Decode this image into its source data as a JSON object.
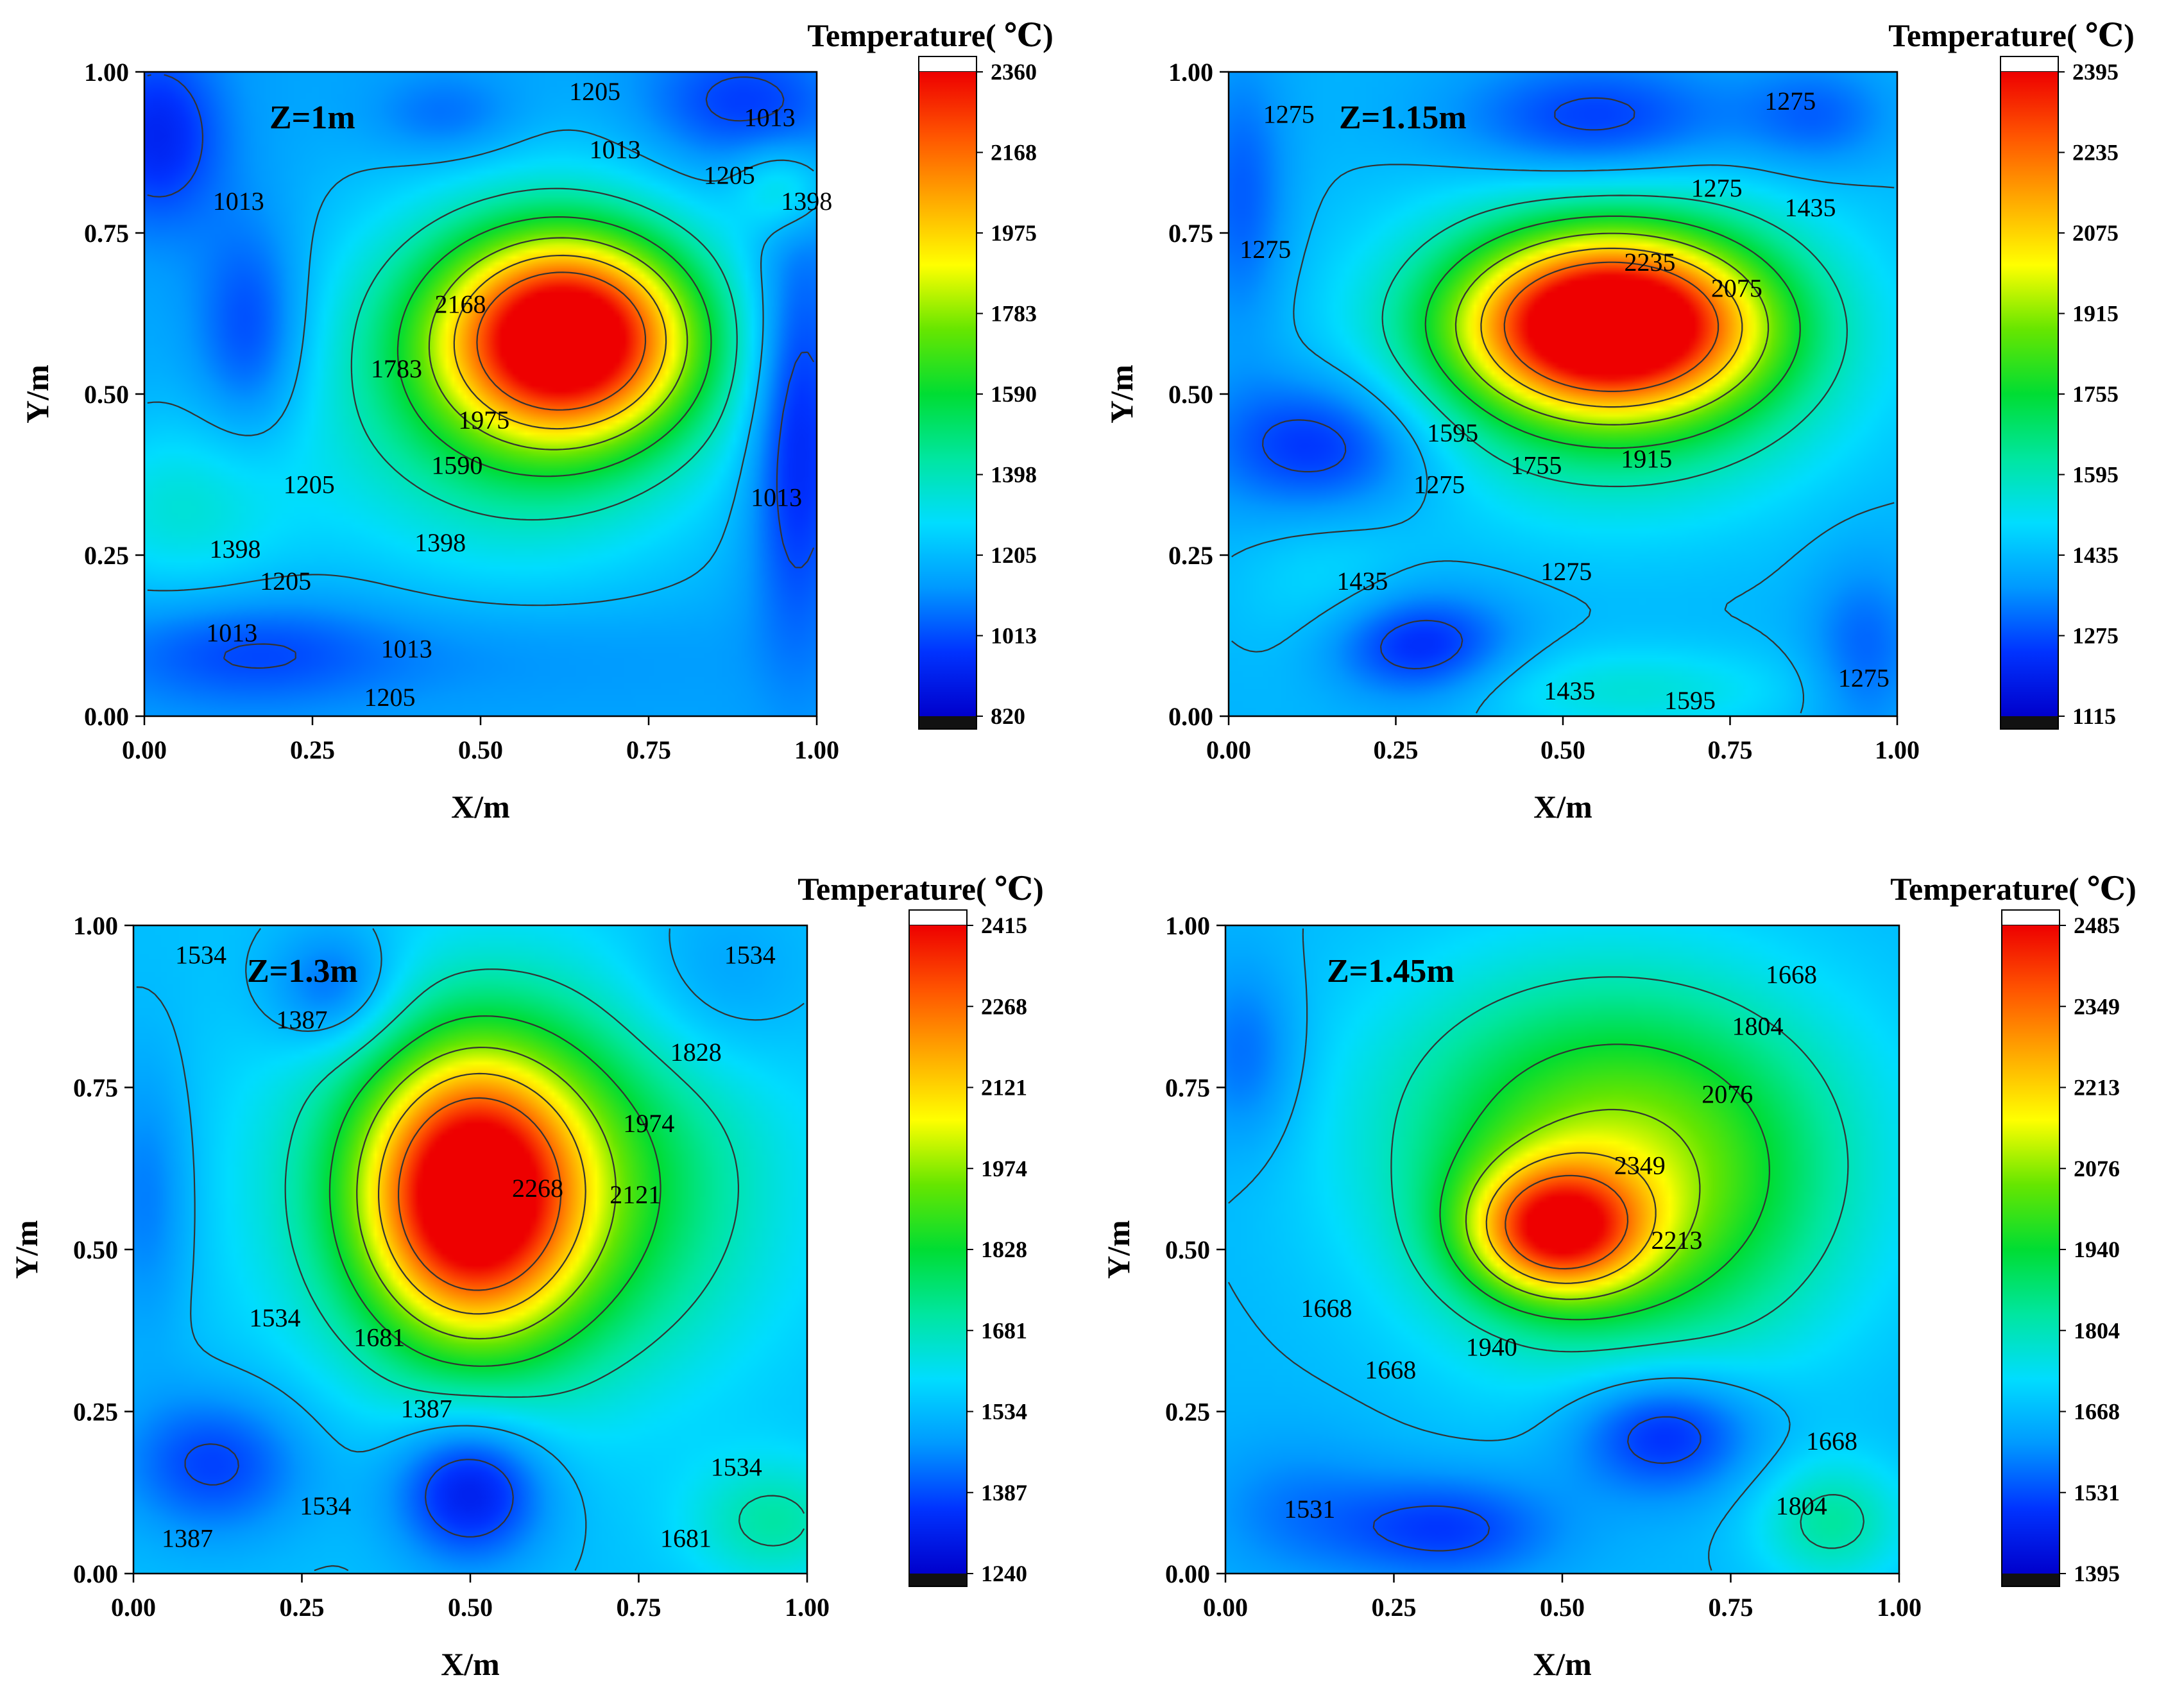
{
  "chart_data": [
    {
      "type": "heatmap",
      "title": "Z=1m",
      "xlabel": "X/m",
      "ylabel": "Y/m",
      "xlim": [
        0,
        1
      ],
      "ylim": [
        0,
        1
      ],
      "xticks": [
        "0.00",
        "0.25",
        "0.50",
        "0.75",
        "1.00"
      ],
      "yticks": [
        "0.00",
        "0.25",
        "0.50",
        "0.75",
        "1.00"
      ],
      "colorbar": {
        "title": "Temperature( ℃)",
        "min": 820,
        "max": 2360,
        "ticks": [
          "820",
          "1013",
          "1205",
          "1398",
          "1590",
          "1783",
          "1975",
          "2168",
          "2360"
        ]
      },
      "base": 1150,
      "hotspots": [
        {
          "x": 0.63,
          "y": 0.59,
          "sx": 0.13,
          "sy": 0.11,
          "a": 1150
        },
        {
          "x": 0.55,
          "y": 0.52,
          "sx": 0.22,
          "sy": 0.2,
          "a": 380
        },
        {
          "x": 0.16,
          "y": 0.6,
          "sx": 0.06,
          "sy": 0.12,
          "a": -200
        },
        {
          "x": 0.97,
          "y": 0.45,
          "sx": 0.05,
          "sy": 0.22,
          "a": -260
        },
        {
          "x": 0.45,
          "y": 0.93,
          "sx": 0.08,
          "sy": 0.05,
          "a": -120
        },
        {
          "x": 0.88,
          "y": 0.95,
          "sx": 0.1,
          "sy": 0.07,
          "a": -170
        },
        {
          "x": 0.02,
          "y": 0.9,
          "sx": 0.07,
          "sy": 0.1,
          "a": -220
        },
        {
          "x": 0.15,
          "y": 0.1,
          "sx": 0.15,
          "sy": 0.06,
          "a": -140
        },
        {
          "x": 0.5,
          "y": 0.1,
          "sx": 0.25,
          "sy": 0.06,
          "a": -60
        },
        {
          "x": 0.05,
          "y": 0.32,
          "sx": 0.12,
          "sy": 0.1,
          "a": 180
        },
        {
          "x": 0.95,
          "y": 0.82,
          "sx": 0.05,
          "sy": 0.05,
          "a": 200
        }
      ],
      "contour_labels": [
        {
          "text": "1205",
          "x": 0.67,
          "y": 0.97
        },
        {
          "text": "1013",
          "x": 0.93,
          "y": 0.93
        },
        {
          "text": "1013",
          "x": 0.7,
          "y": 0.88
        },
        {
          "text": "1205",
          "x": 0.87,
          "y": 0.84
        },
        {
          "text": "1398",
          "x": 0.985,
          "y": 0.8
        },
        {
          "text": "1013",
          "x": 0.14,
          "y": 0.8
        },
        {
          "text": "2168",
          "x": 0.47,
          "y": 0.64
        },
        {
          "text": "1783",
          "x": 0.375,
          "y": 0.54
        },
        {
          "text": "1975",
          "x": 0.505,
          "y": 0.46
        },
        {
          "text": "1590",
          "x": 0.465,
          "y": 0.39
        },
        {
          "text": "1205",
          "x": 0.245,
          "y": 0.36
        },
        {
          "text": "1013",
          "x": 0.94,
          "y": 0.34
        },
        {
          "text": "1398",
          "x": 0.135,
          "y": 0.26
        },
        {
          "text": "1398",
          "x": 0.44,
          "y": 0.27
        },
        {
          "text": "1205",
          "x": 0.21,
          "y": 0.21
        },
        {
          "text": "1013",
          "x": 0.13,
          "y": 0.13
        },
        {
          "text": "1013",
          "x": 0.39,
          "y": 0.105
        },
        {
          "text": "1205",
          "x": 0.365,
          "y": 0.03
        }
      ]
    },
    {
      "type": "heatmap",
      "title": "Z=1.15m",
      "xlabel": "X/m",
      "ylabel": "Y/m",
      "xlim": [
        0,
        1
      ],
      "ylim": [
        0,
        1
      ],
      "xticks": [
        "0.00",
        "0.25",
        "0.50",
        "0.75",
        "1.00"
      ],
      "yticks": [
        "0.00",
        "0.25",
        "0.50",
        "0.75",
        "1.00"
      ],
      "colorbar": {
        "title": "Temperature( ℃)",
        "min": 1115,
        "max": 2395,
        "ticks": [
          "1115",
          "1275",
          "1435",
          "1595",
          "1755",
          "1915",
          "2075",
          "2235",
          "2395"
        ]
      },
      "base": 1420,
      "hotspots": [
        {
          "x": 0.57,
          "y": 0.61,
          "sx": 0.15,
          "sy": 0.09,
          "a": 880
        },
        {
          "x": 0.58,
          "y": 0.58,
          "sx": 0.22,
          "sy": 0.16,
          "a": 420
        },
        {
          "x": 0.28,
          "y": 0.11,
          "sx": 0.1,
          "sy": 0.06,
          "a": -220
        },
        {
          "x": 0.14,
          "y": 0.42,
          "sx": 0.12,
          "sy": 0.08,
          "a": -210
        },
        {
          "x": 0.55,
          "y": 0.92,
          "sx": 0.15,
          "sy": 0.07,
          "a": -200
        },
        {
          "x": 0.88,
          "y": 0.93,
          "sx": 0.08,
          "sy": 0.06,
          "a": -120
        },
        {
          "x": 0.02,
          "y": 0.8,
          "sx": 0.05,
          "sy": 0.15,
          "a": -130
        },
        {
          "x": 0.95,
          "y": 0.1,
          "sx": 0.06,
          "sy": 0.1,
          "a": -120
        },
        {
          "x": 0.6,
          "y": 0.04,
          "sx": 0.18,
          "sy": 0.05,
          "a": 130
        },
        {
          "x": 0.15,
          "y": 0.2,
          "sx": 0.1,
          "sy": 0.1,
          "a": 80
        }
      ],
      "contour_labels": [
        {
          "text": "1275",
          "x": 0.09,
          "y": 0.935
        },
        {
          "text": "1275",
          "x": 0.84,
          "y": 0.955
        },
        {
          "text": "1275",
          "x": 0.73,
          "y": 0.82
        },
        {
          "text": "1435",
          "x": 0.87,
          "y": 0.79
        },
        {
          "text": "1275",
          "x": 0.055,
          "y": 0.725
        },
        {
          "text": "2235",
          "x": 0.63,
          "y": 0.705
        },
        {
          "text": "2075",
          "x": 0.76,
          "y": 0.665
        },
        {
          "text": "1595",
          "x": 0.335,
          "y": 0.44
        },
        {
          "text": "1755",
          "x": 0.46,
          "y": 0.39
        },
        {
          "text": "1915",
          "x": 0.625,
          "y": 0.4
        },
        {
          "text": "1275",
          "x": 0.315,
          "y": 0.36
        },
        {
          "text": "1435",
          "x": 0.2,
          "y": 0.21
        },
        {
          "text": "1275",
          "x": 0.505,
          "y": 0.225
        },
        {
          "text": "1435",
          "x": 0.51,
          "y": 0.04
        },
        {
          "text": "1595",
          "x": 0.69,
          "y": 0.025
        },
        {
          "text": "1275",
          "x": 0.95,
          "y": 0.06
        }
      ]
    },
    {
      "type": "heatmap",
      "title": "Z=1.3m",
      "xlabel": "X/m",
      "ylabel": "Y/m",
      "xlim": [
        0,
        1
      ],
      "ylim": [
        0,
        1
      ],
      "xticks": [
        "0.00",
        "0.25",
        "0.50",
        "0.75",
        "1.00"
      ],
      "yticks": [
        "0.00",
        "0.25",
        "0.50",
        "0.75",
        "1.00"
      ],
      "colorbar": {
        "title": "Temperature( ℃)",
        "min": 1240,
        "max": 2415,
        "ticks": [
          "1240",
          "1387",
          "1534",
          "1681",
          "1828",
          "1974",
          "2121",
          "2268",
          "2415"
        ]
      },
      "base": 1540,
      "hotspots": [
        {
          "x": 0.5,
          "y": 0.58,
          "sx": 0.11,
          "sy": 0.15,
          "a": 720
        },
        {
          "x": 0.58,
          "y": 0.6,
          "sx": 0.22,
          "sy": 0.2,
          "a": 400
        },
        {
          "x": 0.5,
          "y": 0.13,
          "sx": 0.08,
          "sy": 0.08,
          "a": -250
        },
        {
          "x": 0.12,
          "y": 0.17,
          "sx": 0.1,
          "sy": 0.08,
          "a": -170
        },
        {
          "x": 0.3,
          "y": 0.9,
          "sx": 0.07,
          "sy": 0.07,
          "a": -160
        },
        {
          "x": 0.02,
          "y": 0.58,
          "sx": 0.05,
          "sy": 0.15,
          "a": -110
        },
        {
          "x": 0.95,
          "y": 0.08,
          "sx": 0.09,
          "sy": 0.07,
          "a": 160
        },
        {
          "x": 0.86,
          "y": 0.9,
          "sx": 0.1,
          "sy": 0.1,
          "a": -80
        }
      ],
      "contour_labels": [
        {
          "text": "1534",
          "x": 0.1,
          "y": 0.955
        },
        {
          "text": "1534",
          "x": 0.915,
          "y": 0.955
        },
        {
          "text": "1387",
          "x": 0.25,
          "y": 0.855
        },
        {
          "text": "1828",
          "x": 0.835,
          "y": 0.805
        },
        {
          "text": "1974",
          "x": 0.765,
          "y": 0.695
        },
        {
          "text": "2268",
          "x": 0.6,
          "y": 0.595
        },
        {
          "text": "2121",
          "x": 0.745,
          "y": 0.585
        },
        {
          "text": "1534",
          "x": 0.21,
          "y": 0.395
        },
        {
          "text": "1681",
          "x": 0.365,
          "y": 0.365
        },
        {
          "text": "1387",
          "x": 0.435,
          "y": 0.255
        },
        {
          "text": "1534",
          "x": 0.895,
          "y": 0.165
        },
        {
          "text": "1534",
          "x": 0.285,
          "y": 0.105
        },
        {
          "text": "1387",
          "x": 0.08,
          "y": 0.055
        },
        {
          "text": "1681",
          "x": 0.82,
          "y": 0.055
        }
      ]
    },
    {
      "type": "heatmap",
      "title": "Z=1.45m",
      "xlabel": "X/m",
      "ylabel": "Y/m",
      "xlim": [
        0,
        1
      ],
      "ylim": [
        0,
        1
      ],
      "xticks": [
        "0.00",
        "0.25",
        "0.50",
        "0.75",
        "1.00"
      ],
      "yticks": [
        "0.00",
        "0.25",
        "0.50",
        "0.75",
        "1.00"
      ],
      "colorbar": {
        "title": "Temperature( ℃)",
        "min": 1395,
        "max": 2485,
        "ticks": [
          "1395",
          "1531",
          "1668",
          "1804",
          "1940",
          "2076",
          "2213",
          "2349",
          "2485"
        ]
      },
      "base": 1660,
      "hotspots": [
        {
          "x": 0.49,
          "y": 0.53,
          "sx": 0.09,
          "sy": 0.07,
          "a": 560
        },
        {
          "x": 0.6,
          "y": 0.58,
          "sx": 0.21,
          "sy": 0.18,
          "a": 360
        },
        {
          "x": 0.55,
          "y": 0.75,
          "sx": 0.26,
          "sy": 0.17,
          "a": 140
        },
        {
          "x": 0.65,
          "y": 0.22,
          "sx": 0.1,
          "sy": 0.07,
          "a": -200
        },
        {
          "x": 0.33,
          "y": 0.07,
          "sx": 0.12,
          "sy": 0.06,
          "a": -150
        },
        {
          "x": 0.03,
          "y": 0.8,
          "sx": 0.06,
          "sy": 0.1,
          "a": -110
        },
        {
          "x": 0.9,
          "y": 0.08,
          "sx": 0.08,
          "sy": 0.07,
          "a": 170
        },
        {
          "x": 0.1,
          "y": 0.1,
          "sx": 0.1,
          "sy": 0.08,
          "a": -70
        }
      ],
      "contour_labels": [
        {
          "text": "1668",
          "x": 0.84,
          "y": 0.925
        },
        {
          "text": "1804",
          "x": 0.79,
          "y": 0.845
        },
        {
          "text": "2076",
          "x": 0.745,
          "y": 0.74
        },
        {
          "text": "2349",
          "x": 0.615,
          "y": 0.63
        },
        {
          "text": "2213",
          "x": 0.67,
          "y": 0.515
        },
        {
          "text": "1668",
          "x": 0.15,
          "y": 0.41
        },
        {
          "text": "1940",
          "x": 0.395,
          "y": 0.35
        },
        {
          "text": "1668",
          "x": 0.245,
          "y": 0.315
        },
        {
          "text": "1668",
          "x": 0.9,
          "y": 0.205
        },
        {
          "text": "1531",
          "x": 0.125,
          "y": 0.1
        },
        {
          "text": "1804",
          "x": 0.855,
          "y": 0.105
        }
      ]
    }
  ]
}
